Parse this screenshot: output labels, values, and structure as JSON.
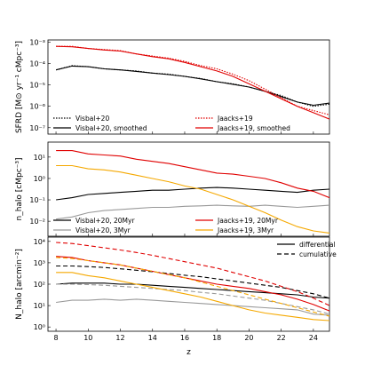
{
  "chart_data": {
    "type": "line",
    "shared_x": {
      "label": "z",
      "range": [
        7.5,
        25
      ],
      "ticks": [
        8,
        10,
        12,
        14,
        16,
        18,
        20,
        22,
        24
      ],
      "tick_labels": [
        "8",
        "10",
        "12",
        "14",
        "16",
        "18",
        "20",
        "22",
        "24"
      ]
    },
    "panels": [
      {
        "ylabel": "SFRD [M⊙ yr⁻¹ cMpc⁻³]",
        "y_scale": "log",
        "ylim_log10": [
          -7.3,
          -2.9
        ],
        "ytick_exponents": [
          -3,
          -4,
          -5,
          -6,
          -7
        ],
        "legend": {
          "placement": "lower-left and lower-right",
          "entries": [
            {
              "label": "Visbal+20",
              "color": "#000000",
              "dash": "dotted"
            },
            {
              "label": "Jaacks+19",
              "color": "#e00000",
              "dash": "dotted"
            },
            {
              "label": "Visbal+20, smoothed",
              "color": "#000000",
              "dash": "solid"
            },
            {
              "label": "Jaacks+19, smoothed",
              "color": "#e00000",
              "dash": "solid"
            }
          ]
        },
        "series": [
          {
            "name": "Visbal+20",
            "color": "#000000",
            "dash": "dotted",
            "x": [
              8,
              9,
              10,
              11,
              12,
              13,
              14,
              15,
              16,
              17,
              18,
              19,
              20,
              21,
              22,
              23,
              24,
              25
            ],
            "log10_y": [
              -4.3,
              -4.1,
              -4.15,
              -4.25,
              -4.3,
              -4.35,
              -4.45,
              -4.5,
              -4.6,
              -4.7,
              -4.85,
              -4.95,
              -5.1,
              -5.3,
              -5.5,
              -5.8,
              -6.0,
              -5.9
            ]
          },
          {
            "name": "Visbal+20, smoothed",
            "color": "#000000",
            "dash": "solid",
            "x": [
              8,
              9,
              10,
              11,
              12,
              13,
              14,
              15,
              16,
              17,
              18,
              19,
              20,
              21,
              22,
              23,
              24,
              25
            ],
            "log10_y": [
              -4.3,
              -4.12,
              -4.15,
              -4.25,
              -4.3,
              -4.37,
              -4.45,
              -4.52,
              -4.6,
              -4.72,
              -4.85,
              -4.97,
              -5.1,
              -5.3,
              -5.55,
              -5.8,
              -5.95,
              -5.85
            ]
          },
          {
            "name": "Jaacks+19",
            "color": "#e00000",
            "dash": "dotted",
            "x": [
              8,
              9,
              10,
              11,
              12,
              13,
              14,
              15,
              16,
              17,
              18,
              19,
              20,
              21,
              22,
              23,
              24,
              25
            ],
            "log10_y": [
              -3.2,
              -3.2,
              -3.3,
              -3.35,
              -3.4,
              -3.55,
              -3.65,
              -3.75,
              -3.9,
              -4.1,
              -4.25,
              -4.5,
              -4.8,
              -5.2,
              -5.6,
              -6.0,
              -6.2,
              -6.4
            ]
          },
          {
            "name": "Jaacks+19, smoothed",
            "color": "#e00000",
            "dash": "solid",
            "x": [
              8,
              9,
              10,
              11,
              12,
              13,
              14,
              15,
              16,
              17,
              18,
              19,
              20,
              21,
              22,
              23,
              24,
              25
            ],
            "log10_y": [
              -3.2,
              -3.22,
              -3.3,
              -3.37,
              -3.42,
              -3.55,
              -3.68,
              -3.78,
              -3.95,
              -4.15,
              -4.35,
              -4.6,
              -4.95,
              -5.3,
              -5.65,
              -6.0,
              -6.3,
              -6.6
            ]
          }
        ]
      },
      {
        "ylabel": "n_halo [cMpc⁻³]",
        "y_scale": "log",
        "ylim_log10": [
          -2.7,
          1.7
        ],
        "ytick_exponents": [
          1,
          -1,
          -2
        ],
        "ytick_zero_label": "10⁰",
        "legend": {
          "placement": "lower-left and lower-right",
          "entries": [
            {
              "label": "Visbal+20, 20Myr",
              "color": "#000000",
              "dash": "solid"
            },
            {
              "label": "Jaacks+19, 20Myr",
              "color": "#e00000",
              "dash": "solid"
            },
            {
              "label": "Visbal+20, 3Myr",
              "color": "#999999",
              "dash": "solid"
            },
            {
              "label": "Jaacks+19, 3Myr",
              "color": "#f5a800",
              "dash": "solid"
            }
          ]
        },
        "series": [
          {
            "name": "Visbal+20, 20Myr",
            "color": "#000000",
            "dash": "solid",
            "x": [
              8,
              9,
              10,
              11,
              12,
              13,
              14,
              15,
              16,
              17,
              18,
              19,
              20,
              21,
              22,
              23,
              24,
              25
            ],
            "log10_y": [
              -1.0,
              -0.9,
              -0.75,
              -0.7,
              -0.65,
              -0.6,
              -0.55,
              -0.55,
              -0.5,
              -0.45,
              -0.42,
              -0.45,
              -0.5,
              -0.55,
              -0.6,
              -0.65,
              -0.55,
              -0.5
            ]
          },
          {
            "name": "Visbal+20, 3Myr",
            "color": "#999999",
            "dash": "solid",
            "x": [
              8,
              9,
              10,
              11,
              12,
              13,
              14,
              15,
              16,
              17,
              18,
              19,
              20,
              21,
              22,
              23,
              24,
              25
            ],
            "log10_y": [
              -1.9,
              -1.8,
              -1.6,
              -1.5,
              -1.45,
              -1.4,
              -1.35,
              -1.35,
              -1.3,
              -1.28,
              -1.25,
              -1.28,
              -1.3,
              -1.25,
              -1.3,
              -1.35,
              -1.3,
              -1.25
            ]
          },
          {
            "name": "Jaacks+19, 20Myr",
            "color": "#e00000",
            "dash": "solid",
            "x": [
              8,
              9,
              10,
              11,
              12,
              13,
              14,
              15,
              16,
              17,
              18,
              19,
              20,
              21,
              22,
              23,
              24,
              25
            ],
            "log10_y": [
              1.3,
              1.3,
              1.15,
              1.1,
              1.05,
              0.9,
              0.8,
              0.7,
              0.55,
              0.4,
              0.25,
              0.2,
              0.1,
              0.0,
              -0.2,
              -0.45,
              -0.6,
              -0.9
            ]
          },
          {
            "name": "Jaacks+19, 3Myr",
            "color": "#f5a800",
            "dash": "solid",
            "x": [
              8,
              9,
              10,
              11,
              12,
              13,
              14,
              15,
              16,
              17,
              18,
              19,
              20,
              21,
              22,
              23,
              24,
              25
            ],
            "log10_y": [
              0.6,
              0.6,
              0.45,
              0.4,
              0.3,
              0.15,
              0.0,
              -0.15,
              -0.35,
              -0.5,
              -0.75,
              -1.0,
              -1.3,
              -1.6,
              -1.95,
              -2.25,
              -2.45,
              -2.55
            ]
          }
        ]
      },
      {
        "ylabel": "N_halo [arcmin⁻²]",
        "y_scale": "log",
        "ylim_log10": [
          -0.2,
          4.2
        ],
        "ytick_exponents": [
          0,
          1,
          2,
          3,
          4
        ],
        "legend": {
          "placement": "upper-right",
          "entries": [
            {
              "label": "differential",
              "color": "#000000",
              "dash": "solid"
            },
            {
              "label": "cumulative",
              "color": "#000000",
              "dash": "dashed"
            }
          ]
        },
        "series": [
          {
            "name": "Visbal+20, 20Myr, differential",
            "color": "#000000",
            "dash": "solid",
            "x": [
              8,
              9,
              10,
              11,
              12,
              13,
              14,
              15,
              16,
              17,
              18,
              19,
              20,
              21,
              22,
              23,
              24,
              25
            ],
            "log10_y": [
              2.0,
              2.05,
              2.05,
              2.05,
              2.0,
              2.0,
              1.95,
              1.9,
              1.85,
              1.8,
              1.75,
              1.7,
              1.65,
              1.6,
              1.55,
              1.5,
              1.4,
              1.35
            ]
          },
          {
            "name": "Visbal+20, 20Myr, cumulative",
            "color": "#000000",
            "dash": "dashed",
            "x": [
              8,
              9,
              10,
              11,
              12,
              13,
              14,
              15,
              16,
              17,
              18,
              19,
              20,
              21,
              22,
              23,
              24,
              25
            ],
            "log10_y": [
              2.85,
              2.85,
              2.82,
              2.78,
              2.72,
              2.65,
              2.58,
              2.5,
              2.42,
              2.35,
              2.25,
              2.15,
              2.05,
              1.95,
              1.85,
              1.7,
              1.55,
              1.35
            ]
          },
          {
            "name": "Visbal+20, 3Myr, differential",
            "color": "#999999",
            "dash": "solid",
            "x": [
              8,
              9,
              10,
              11,
              12,
              13,
              14,
              15,
              16,
              17,
              18,
              19,
              20,
              21,
              22,
              23,
              24,
              25
            ],
            "log10_y": [
              1.15,
              1.25,
              1.25,
              1.3,
              1.25,
              1.3,
              1.25,
              1.2,
              1.15,
              1.1,
              1.05,
              1.0,
              0.95,
              0.9,
              0.85,
              0.8,
              0.6,
              0.55
            ]
          },
          {
            "name": "Visbal+20, 3Myr, cumulative",
            "color": "#999999",
            "dash": "dashed",
            "x": [
              8,
              9,
              10,
              11,
              12,
              13,
              14,
              15,
              16,
              17,
              18,
              19,
              20,
              21,
              22,
              23,
              24,
              25
            ],
            "log10_y": [
              2.0,
              2.0,
              1.98,
              1.95,
              1.9,
              1.85,
              1.8,
              1.75,
              1.7,
              1.62,
              1.55,
              1.45,
              1.35,
              1.25,
              1.1,
              0.95,
              0.8,
              0.6
            ]
          },
          {
            "name": "Jaacks+19, 20Myr, differential",
            "color": "#e00000",
            "dash": "solid",
            "x": [
              8,
              9,
              10,
              11,
              12,
              13,
              14,
              15,
              16,
              17,
              18,
              19,
              20,
              21,
              22,
              23,
              24,
              25
            ],
            "log10_y": [
              3.3,
              3.25,
              3.1,
              3.0,
              2.9,
              2.75,
              2.6,
              2.45,
              2.3,
              2.15,
              2.0,
              1.9,
              1.8,
              1.65,
              1.5,
              1.3,
              1.05,
              0.75
            ]
          },
          {
            "name": "Jaacks+19, 20Myr, cumulative",
            "color": "#e00000",
            "dash": "dashed",
            "x": [
              8,
              9,
              10,
              11,
              12,
              13,
              14,
              15,
              16,
              17,
              18,
              19,
              20,
              21,
              22,
              23,
              24,
              25
            ],
            "log10_y": [
              3.95,
              3.9,
              3.8,
              3.7,
              3.6,
              3.48,
              3.35,
              3.2,
              3.05,
              2.9,
              2.75,
              2.55,
              2.35,
              2.15,
              1.9,
              1.65,
              1.35,
              1.0
            ]
          },
          {
            "name": "Jaacks+19, 3Myr, differential",
            "color": "#f5a800",
            "dash": "solid",
            "x": [
              8,
              9,
              10,
              11,
              12,
              13,
              14,
              15,
              16,
              17,
              18,
              19,
              20,
              21,
              22,
              23,
              24,
              25
            ],
            "log10_y": [
              2.55,
              2.55,
              2.4,
              2.3,
              2.15,
              2.0,
              1.85,
              1.7,
              1.55,
              1.4,
              1.2,
              1.0,
              0.8,
              0.65,
              0.55,
              0.45,
              0.35,
              0.3
            ]
          },
          {
            "name": "Jaacks+19, 3Myr, cumulative",
            "color": "#f5a800",
            "dash": "dashed",
            "x": [
              8,
              9,
              10,
              11,
              12,
              13,
              14,
              15,
              16,
              17,
              18,
              19,
              20,
              21,
              22,
              23,
              24,
              25
            ],
            "log10_y": [
              3.25,
              3.2,
              3.1,
              3.0,
              2.9,
              2.75,
              2.6,
              2.45,
              2.3,
              2.1,
              1.9,
              1.7,
              1.5,
              1.3,
              1.1,
              0.9,
              0.7,
              0.5
            ]
          }
        ]
      }
    ]
  }
}
